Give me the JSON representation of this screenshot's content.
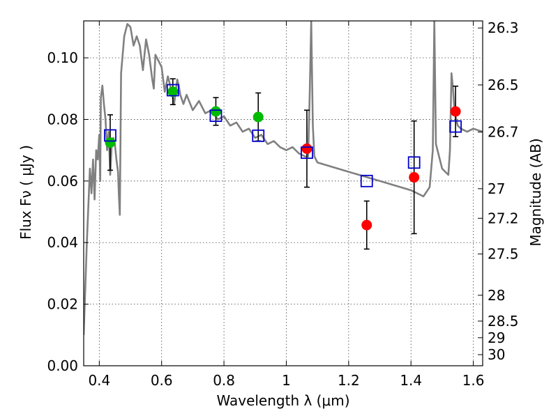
{
  "chart_data": {
    "type": "scatter",
    "title": "",
    "xlabel": "Wavelength  λ (μm)",
    "ylabel": "Flux  Fν  ( μJy )",
    "ylabel_right": "Magnitude (AB)",
    "xlim": [
      0.35,
      1.63
    ],
    "ylim": [
      0.0,
      0.112
    ],
    "grid": true,
    "xticks": [
      0.4,
      0.6,
      0.8,
      1.0,
      1.2,
      1.4,
      1.6
    ],
    "xtick_labels": [
      "0.4",
      "0.6",
      "0.8",
      "1",
      "1.2",
      "1.4",
      "1.6"
    ],
    "yticks": [
      0.0,
      0.02,
      0.04,
      0.06,
      0.08,
      0.1
    ],
    "ytick_labels": [
      "0.00",
      "0.02",
      "0.04",
      "0.06",
      "0.08",
      "0.10"
    ],
    "right_ticks": [
      {
        "label": "26.3",
        "flux": 0.1097
      },
      {
        "label": "26.5",
        "flux": 0.0912
      },
      {
        "label": "26.7",
        "flux": 0.0759
      },
      {
        "label": "27",
        "flux": 0.0575
      },
      {
        "label": "27.2",
        "flux": 0.0479
      },
      {
        "label": "27.5",
        "flux": 0.0363
      },
      {
        "label": "28",
        "flux": 0.0229
      },
      {
        "label": "28.5",
        "flux": 0.0145
      },
      {
        "label": "29",
        "flux": 0.0091
      },
      {
        "label": "30",
        "flux": 0.0036
      }
    ],
    "series": [
      {
        "kind": "model",
        "color": "#808080",
        "x": [
          0.35,
          0.36,
          0.37,
          0.375,
          0.38,
          0.385,
          0.39,
          0.395,
          0.4,
          0.403,
          0.405,
          0.41,
          0.415,
          0.42,
          0.425,
          0.43,
          0.435,
          0.44,
          0.445,
          0.45,
          0.455,
          0.46,
          0.463,
          0.466,
          0.47,
          0.48,
          0.49,
          0.5,
          0.51,
          0.52,
          0.53,
          0.54,
          0.55,
          0.56,
          0.57,
          0.575,
          0.58,
          0.59,
          0.6,
          0.61,
          0.62,
          0.63,
          0.64,
          0.65,
          0.655,
          0.66,
          0.67,
          0.68,
          0.7,
          0.72,
          0.74,
          0.76,
          0.78,
          0.8,
          0.82,
          0.84,
          0.86,
          0.88,
          0.9,
          0.92,
          0.94,
          0.96,
          0.98,
          1.0,
          1.02,
          1.04,
          1.06,
          1.07,
          1.075,
          1.08,
          1.085,
          1.09,
          1.1,
          1.2,
          1.3,
          1.4,
          1.42,
          1.44,
          1.46,
          1.47,
          1.475,
          1.48,
          1.5,
          1.52,
          1.525,
          1.53,
          1.535,
          1.54,
          1.55,
          1.56,
          1.58,
          1.6,
          1.63
        ],
        "y": [
          0.01,
          0.04,
          0.064,
          0.056,
          0.067,
          0.054,
          0.07,
          0.067,
          0.075,
          0.06,
          0.087,
          0.091,
          0.085,
          0.08,
          0.07,
          0.076,
          0.062,
          0.072,
          0.074,
          0.072,
          0.067,
          0.063,
          0.055,
          0.049,
          0.095,
          0.107,
          0.111,
          0.11,
          0.104,
          0.107,
          0.104,
          0.096,
          0.106,
          0.101,
          0.093,
          0.09,
          0.101,
          0.099,
          0.097,
          0.089,
          0.094,
          0.09,
          0.085,
          0.093,
          0.091,
          0.088,
          0.085,
          0.088,
          0.083,
          0.086,
          0.082,
          0.083,
          0.08,
          0.081,
          0.078,
          0.079,
          0.076,
          0.077,
          0.074,
          0.075,
          0.072,
          0.073,
          0.071,
          0.07,
          0.071,
          0.069,
          0.068,
          0.068,
          0.088,
          0.112,
          0.078,
          0.068,
          0.066,
          0.063,
          0.06,
          0.057,
          0.056,
          0.055,
          0.058,
          0.07,
          0.112,
          0.072,
          0.064,
          0.062,
          0.07,
          0.095,
          0.09,
          0.082,
          0.078,
          0.077,
          0.076,
          0.077,
          0.076
        ]
      },
      {
        "kind": "synthetic",
        "color": "#0000cc",
        "x": [
          0.435,
          0.636,
          0.774,
          0.91,
          1.066,
          1.258,
          1.41,
          1.543
        ],
        "y": [
          0.0748,
          0.0895,
          0.0812,
          0.0747,
          0.0692,
          0.06,
          0.066,
          0.0777
        ]
      },
      {
        "kind": "observed",
        "color": "#00bb00",
        "x": [
          0.435,
          0.636,
          0.774,
          0.91
        ],
        "y": [
          0.0725,
          0.089,
          0.0826,
          0.0808
        ],
        "yerr": [
          0.009,
          0.0042,
          0.0045,
          0.0078
        ]
      },
      {
        "kind": "observed",
        "color": "#ff0000",
        "x": [
          1.066,
          1.258,
          1.41,
          1.543
        ],
        "y": [
          0.0705,
          0.0457,
          0.0612,
          0.0826
        ],
        "yerr": [
          0.0125,
          0.0078,
          0.0183,
          0.0082
        ]
      }
    ]
  }
}
